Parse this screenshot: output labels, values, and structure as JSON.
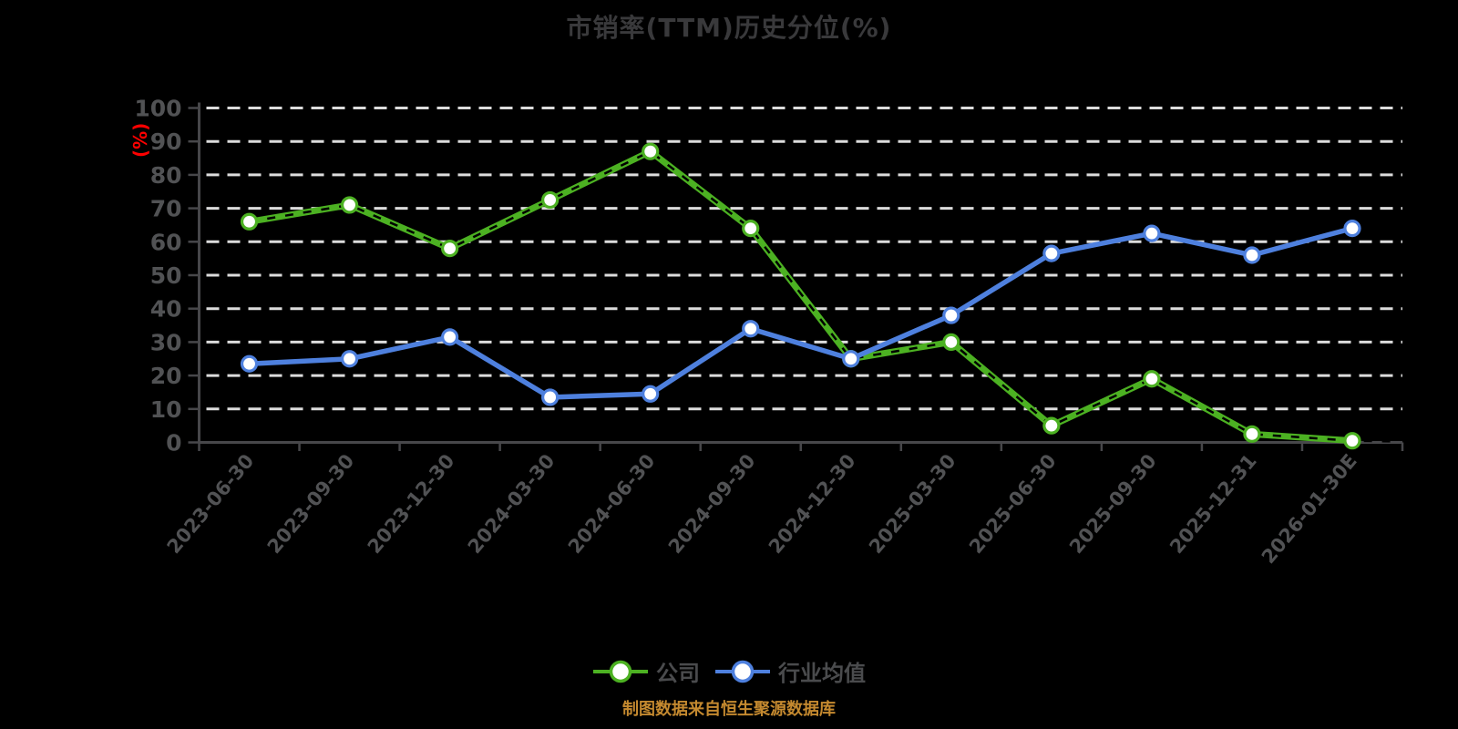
{
  "title": "市销率(TTM)历史分位(%)",
  "footer": {
    "source_note": "制图数据来自恒生聚源数据库"
  },
  "colors": {
    "background": "#000000",
    "title_text": "#39393B",
    "axis_text": "#515254",
    "axis_line": "#47474A",
    "gridline": "#DCDCDC",
    "legend_text": "#4A4B4D",
    "footer_text": "#C4892F",
    "y_unit_label": "#FE0000"
  },
  "chart_data": {
    "type": "line",
    "title": "市销率(TTM)历史分位(%)",
    "categories": [
      "2023-06-30",
      "2023-09-30",
      "2023-12-30",
      "2024-03-30",
      "2024-06-30",
      "2024-09-30",
      "2024-12-30",
      "2025-03-30",
      "2025-06-30",
      "2025-09-30",
      "2025-12-31",
      "2026-01-30E"
    ],
    "series": [
      {
        "name": "公司",
        "color": "#4CB122",
        "marker": "circle-white-fill",
        "line_style": "solid-with-black-dash-overlay",
        "values": [
          66,
          71,
          58,
          72.5,
          87,
          64,
          25,
          30,
          5,
          19,
          2.5,
          0.5
        ]
      },
      {
        "name": "行业均值",
        "color": "#4E80DE",
        "marker": "circle-white-fill",
        "line_style": "solid",
        "values": [
          23.5,
          25,
          31.5,
          13.5,
          14.5,
          34,
          25,
          38,
          56.5,
          62.5,
          56,
          64
        ]
      }
    ],
    "xlabel": "",
    "ylabel": "(%)",
    "ylim": [
      0,
      100
    ],
    "y_tick_step": 10,
    "grid": "horizontal-dashed",
    "legend_position": "bottom",
    "x_tick_label_rotation": -50
  }
}
